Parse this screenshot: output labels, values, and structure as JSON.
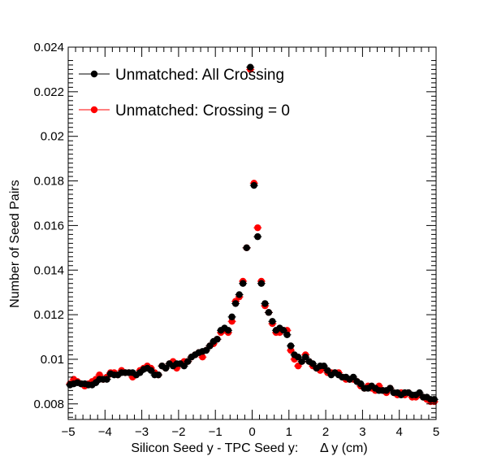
{
  "chart_data": {
    "type": "scatter",
    "title": "",
    "xlabel": "Silicon Seed y - TPC Seed y:      Δ y (cm)",
    "ylabel": "Number of Seed Pairs",
    "xlim": [
      -5,
      5
    ],
    "ylim": [
      0.0073,
      0.024
    ],
    "x_ticks": [
      -5,
      -4,
      -3,
      -2,
      -1,
      0,
      1,
      2,
      3,
      4,
      5
    ],
    "x_tick_labels": [
      "−5",
      "−4",
      "−3",
      "−2",
      "−1",
      "0",
      "1",
      "2",
      "3",
      "4",
      "5"
    ],
    "y_ticks": [
      0.008,
      0.01,
      0.012,
      0.014,
      0.016,
      0.018,
      0.02,
      0.022,
      0.024
    ],
    "y_tick_labels": [
      "0.008",
      "0.01",
      "0.012",
      "0.014",
      "0.016",
      "0.018",
      "0.02",
      "0.022",
      "0.024"
    ],
    "legend_position": "top-left",
    "grid": false,
    "series": [
      {
        "name": "Unmatched: All Crossing",
        "color": "#000000",
        "x": [
          -4.95,
          -4.85,
          -4.75,
          -4.65,
          -4.55,
          -4.45,
          -4.35,
          -4.25,
          -4.15,
          -4.05,
          -3.95,
          -3.85,
          -3.75,
          -3.65,
          -3.55,
          -3.45,
          -3.35,
          -3.25,
          -3.15,
          -3.05,
          -2.95,
          -2.85,
          -2.75,
          -2.65,
          -2.55,
          -2.45,
          -2.35,
          -2.25,
          -2.15,
          -2.05,
          -1.95,
          -1.85,
          -1.75,
          -1.65,
          -1.55,
          -1.45,
          -1.35,
          -1.25,
          -1.15,
          -1.05,
          -0.95,
          -0.85,
          -0.75,
          -0.65,
          -0.55,
          -0.45,
          -0.35,
          -0.25,
          -0.15,
          -0.05,
          0.05,
          0.15,
          0.25,
          0.35,
          0.45,
          0.55,
          0.65,
          0.75,
          0.85,
          0.95,
          1.05,
          1.15,
          1.25,
          1.35,
          1.45,
          1.55,
          1.65,
          1.75,
          1.85,
          1.95,
          2.05,
          2.15,
          2.25,
          2.35,
          2.45,
          2.55,
          2.65,
          2.75,
          2.85,
          2.95,
          3.05,
          3.15,
          3.25,
          3.35,
          3.45,
          3.55,
          3.65,
          3.75,
          3.85,
          3.95,
          4.05,
          4.15,
          4.25,
          4.35,
          4.45,
          4.55,
          4.65,
          4.75,
          4.85,
          4.95
        ],
        "values": [
          0.00885,
          0.0089,
          0.00895,
          0.0089,
          0.0089,
          0.00885,
          0.00885,
          0.00895,
          0.0091,
          0.0091,
          0.0091,
          0.00935,
          0.0093,
          0.0093,
          0.0094,
          0.0094,
          0.0094,
          0.0094,
          0.0093,
          0.0094,
          0.00955,
          0.0096,
          0.0095,
          0.0093,
          0.0093,
          0.0097,
          0.0096,
          0.0098,
          0.0097,
          0.0098,
          0.0098,
          0.0097,
          0.0099,
          0.0101,
          0.0102,
          0.0103,
          0.01035,
          0.0104,
          0.0106,
          0.0108,
          0.0109,
          0.0113,
          0.0114,
          0.0113,
          0.0119,
          0.0125,
          0.0129,
          0.0134,
          0.015,
          0.0231,
          0.0178,
          0.0155,
          0.0134,
          0.0125,
          0.0121,
          0.0117,
          0.0113,
          0.0114,
          0.0113,
          0.0111,
          0.0106,
          0.0102,
          0.0101,
          0.0099,
          0.0101,
          0.0099,
          0.0098,
          0.0096,
          0.0097,
          0.0097,
          0.0095,
          0.0093,
          0.0094,
          0.0093,
          0.0092,
          0.0092,
          0.0091,
          0.0092,
          0.009,
          0.0089,
          0.0087,
          0.0087,
          0.0088,
          0.0087,
          0.0086,
          0.0086,
          0.0086,
          0.0087,
          0.0085,
          0.0085,
          0.0084,
          0.0085,
          0.0085,
          0.0084,
          0.0084,
          0.0085,
          0.0083,
          0.0083,
          0.0082,
          0.0082
        ]
      },
      {
        "name": "Unmatched: Crossing = 0",
        "color": "#ff0000",
        "x": [
          -4.95,
          -4.85,
          -4.75,
          -4.65,
          -4.55,
          -4.45,
          -4.35,
          -4.25,
          -4.15,
          -4.05,
          -3.95,
          -3.85,
          -3.75,
          -3.65,
          -3.55,
          -3.45,
          -3.35,
          -3.25,
          -3.15,
          -3.05,
          -2.95,
          -2.85,
          -2.75,
          -2.65,
          -2.55,
          -2.45,
          -2.35,
          -2.25,
          -2.15,
          -2.05,
          -1.95,
          -1.85,
          -1.75,
          -1.65,
          -1.55,
          -1.45,
          -1.35,
          -1.25,
          -1.15,
          -1.05,
          -0.95,
          -0.85,
          -0.75,
          -0.65,
          -0.55,
          -0.45,
          -0.35,
          -0.25,
          -0.15,
          -0.05,
          0.05,
          0.15,
          0.25,
          0.35,
          0.45,
          0.55,
          0.65,
          0.75,
          0.85,
          0.95,
          1.05,
          1.15,
          1.25,
          1.35,
          1.45,
          1.55,
          1.65,
          1.75,
          1.85,
          1.95,
          2.05,
          2.15,
          2.25,
          2.35,
          2.45,
          2.55,
          2.65,
          2.75,
          2.85,
          2.95,
          3.05,
          3.15,
          3.25,
          3.35,
          3.45,
          3.55,
          3.65,
          3.75,
          3.85,
          3.95,
          4.05,
          4.15,
          4.25,
          4.35,
          4.45,
          4.55,
          4.65,
          4.75,
          4.85,
          4.95
        ],
        "values": [
          0.0089,
          0.0091,
          0.009,
          0.0089,
          0.0088,
          0.0089,
          0.009,
          0.0091,
          0.0093,
          0.0091,
          0.0092,
          0.0094,
          0.0094,
          0.0093,
          0.0095,
          0.0094,
          0.0094,
          0.0092,
          0.0093,
          0.0095,
          0.0096,
          0.0097,
          0.0096,
          0.0094,
          0.0093,
          0.0097,
          0.0096,
          0.0098,
          0.0099,
          0.0096,
          0.0098,
          0.0099,
          0.0099,
          0.0101,
          0.0102,
          0.0103,
          0.0101,
          0.0104,
          0.0106,
          0.0107,
          0.0109,
          0.0112,
          0.0113,
          0.0112,
          0.0117,
          0.0126,
          0.0128,
          0.0135,
          0.015,
          0.023,
          0.0179,
          0.0159,
          0.0135,
          0.0124,
          0.0121,
          0.0116,
          0.0112,
          0.0112,
          0.0113,
          0.0113,
          0.0104,
          0.01,
          0.0097,
          0.0099,
          0.0102,
          0.0099,
          0.0097,
          0.0096,
          0.0095,
          0.0096,
          0.0094,
          0.0094,
          0.0094,
          0.0094,
          0.0092,
          0.0091,
          0.0091,
          0.0091,
          0.009,
          0.0088,
          0.0087,
          0.0088,
          0.0087,
          0.0086,
          0.0088,
          0.0086,
          0.0085,
          0.0087,
          0.0085,
          0.0084,
          0.0085,
          0.0084,
          0.0085,
          0.0083,
          0.0083,
          0.0084,
          0.0083,
          0.0082,
          0.0081,
          0.0081
        ]
      }
    ]
  }
}
